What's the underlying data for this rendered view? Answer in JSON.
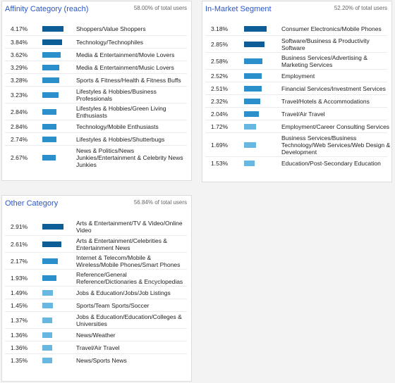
{
  "panels": [
    {
      "id": "affinity",
      "title": "Affinity Category (reach)",
      "total": "58.00% of total users",
      "rows": [
        {
          "pct": "4.17%",
          "label": "Shoppers/Value Shoppers",
          "value": 4.17
        },
        {
          "pct": "3.84%",
          "label": "Technology/Technophiles",
          "value": 3.84
        },
        {
          "pct": "3.62%",
          "label": "Media & Entertainment/Movie Lovers",
          "value": 3.62
        },
        {
          "pct": "3.29%",
          "label": "Media & Entertainment/Music Lovers",
          "value": 3.29
        },
        {
          "pct": "3.28%",
          "label": "Sports & Fitness/Health & Fitness Buffs",
          "value": 3.28
        },
        {
          "pct": "3.23%",
          "label": "Lifestyles & Hobbies/Business Professionals",
          "value": 3.23
        },
        {
          "pct": "2.84%",
          "label": "Lifestyles & Hobbies/Green Living Enthusiasts",
          "value": 2.84
        },
        {
          "pct": "2.84%",
          "label": "Technology/Mobile Enthusiasts",
          "value": 2.84
        },
        {
          "pct": "2.74%",
          "label": "Lifestyles & Hobbies/Shutterbugs",
          "value": 2.74
        },
        {
          "pct": "2.67%",
          "label": "News & Politics/News Junkies/Entertainment & Celebrity News Junkies",
          "value": 2.67
        }
      ]
    },
    {
      "id": "inmarket",
      "title": "In-Market Segment",
      "total": "52.20% of total users",
      "rows": [
        {
          "pct": "3.18%",
          "label": "Consumer Electronics/Mobile Phones",
          "value": 3.18
        },
        {
          "pct": "2.85%",
          "label": "Software/Business & Productivity Software",
          "value": 2.85
        },
        {
          "pct": "2.58%",
          "label": "Business Services/Advertising & Marketing Services",
          "value": 2.58
        },
        {
          "pct": "2.52%",
          "label": "Employment",
          "value": 2.52
        },
        {
          "pct": "2.51%",
          "label": "Financial Services/Investment Services",
          "value": 2.51
        },
        {
          "pct": "2.32%",
          "label": "Travel/Hotels & Accommodations",
          "value": 2.32
        },
        {
          "pct": "2.04%",
          "label": "Travel/Air Travel",
          "value": 2.04
        },
        {
          "pct": "1.72%",
          "label": "Employment/Career Consulting Services",
          "value": 1.72
        },
        {
          "pct": "1.69%",
          "label": "Business Services/Business Technology/Web Services/Web Design & Development",
          "value": 1.69
        },
        {
          "pct": "1.53%",
          "label": "Education/Post-Secondary Education",
          "value": 1.53
        }
      ]
    },
    {
      "id": "other",
      "title": "Other Category",
      "total": "56.84% of total users",
      "rows": [
        {
          "pct": "2.91%",
          "label": "Arts & Entertainment/TV & Video/Online Video",
          "value": 2.91
        },
        {
          "pct": "2.61%",
          "label": "Arts & Entertainment/Celebrities & Entertainment News",
          "value": 2.61
        },
        {
          "pct": "2.17%",
          "label": "Internet & Telecom/Mobile & Wireless/Mobile Phones/Smart Phones",
          "value": 2.17
        },
        {
          "pct": "1.93%",
          "label": "Reference/General Reference/Dictionaries & Encyclopedias",
          "value": 1.93
        },
        {
          "pct": "1.49%",
          "label": "Jobs & Education/Jobs/Job Listings",
          "value": 1.49
        },
        {
          "pct": "1.45%",
          "label": "Sports/Team Sports/Soccer",
          "value": 1.45
        },
        {
          "pct": "1.37%",
          "label": "Jobs & Education/Education/Colleges & Universities",
          "value": 1.37
        },
        {
          "pct": "1.36%",
          "label": "News/Weather",
          "value": 1.36
        },
        {
          "pct": "1.36%",
          "label": "Travel/Air Travel",
          "value": 1.36
        },
        {
          "pct": "1.35%",
          "label": "News/Sports News",
          "value": 1.35
        }
      ]
    }
  ],
  "colors": {
    "title": "#2a56c6",
    "bar_dark": "#0d5e96",
    "bar_mid": "#2b8fcc",
    "bar_light": "#67b7e1"
  }
}
